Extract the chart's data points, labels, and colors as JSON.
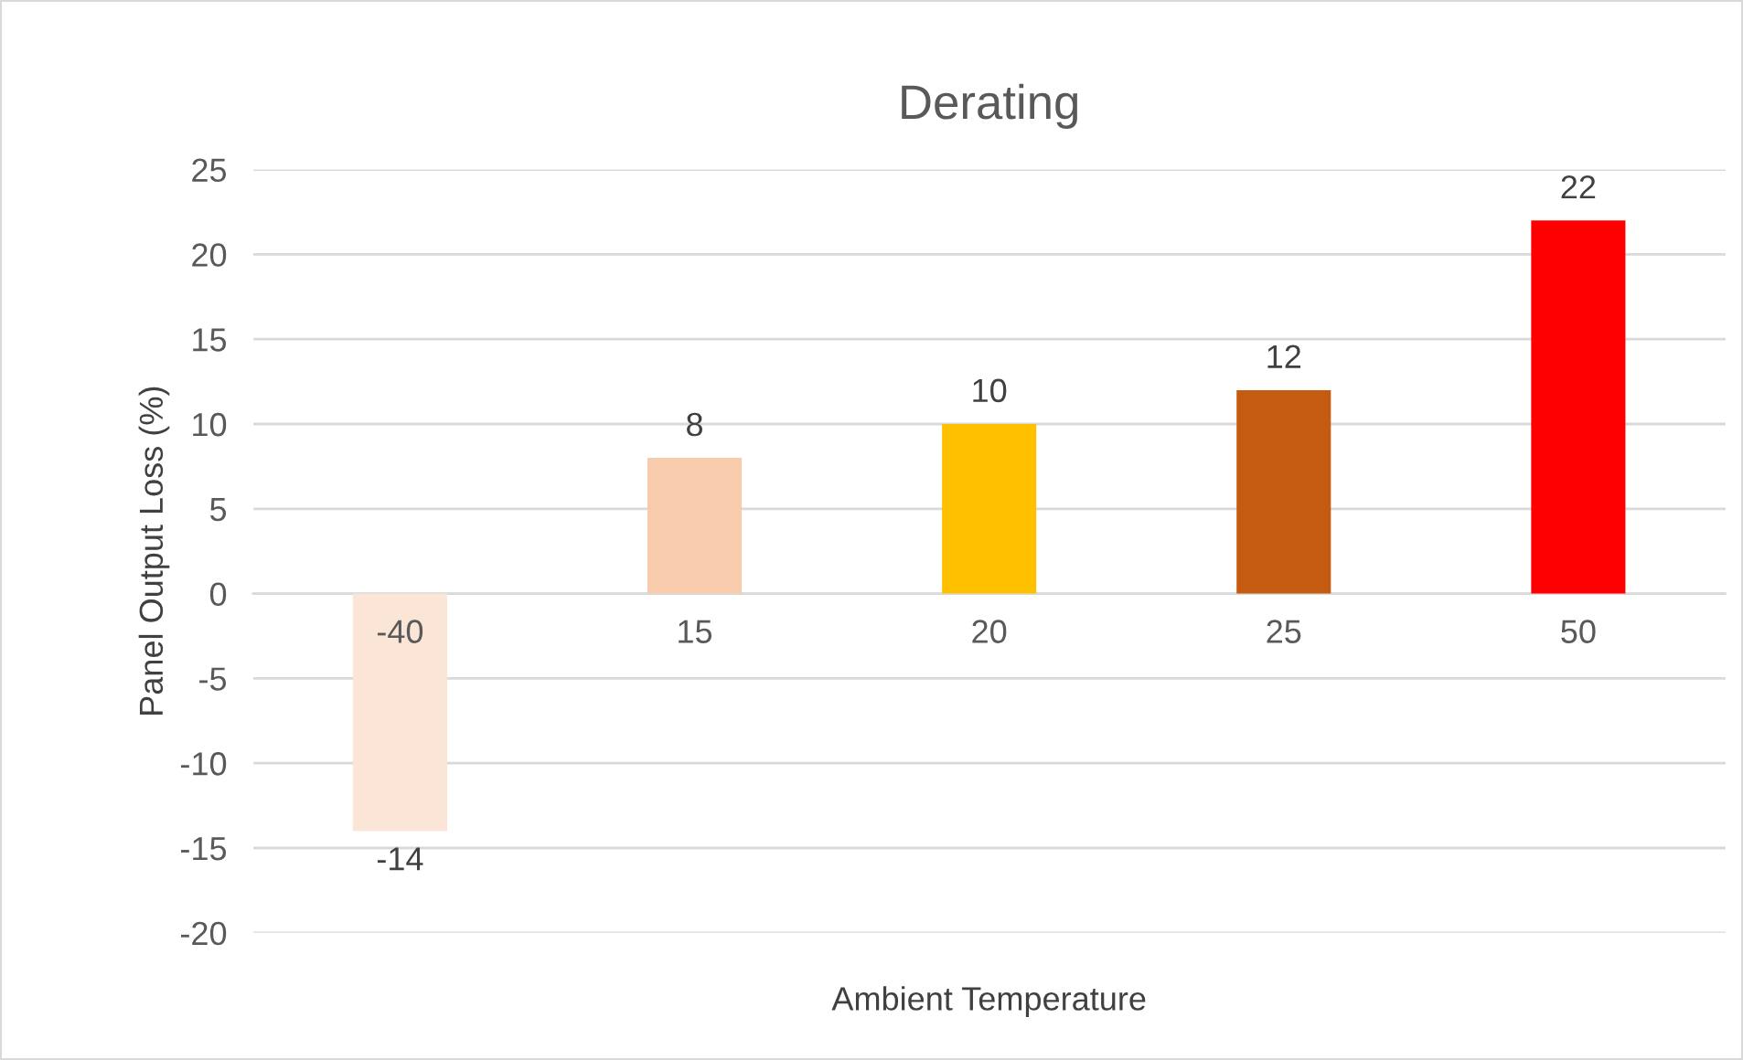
{
  "chart_data": {
    "type": "bar",
    "title": "Derating",
    "xlabel": "Ambient Temperature",
    "ylabel": "Panel Output Loss (%)",
    "categories": [
      "-40",
      "15",
      "20",
      "25",
      "50"
    ],
    "values": [
      -14,
      8,
      10,
      12,
      22
    ],
    "colors": [
      "#fbe5d6",
      "#f8cbad",
      "#ffc000",
      "#c55a11",
      "#ff0000"
    ],
    "ylim": [
      -20,
      25
    ],
    "yticks": [
      -20,
      -15,
      -10,
      -5,
      0,
      5,
      10,
      15,
      20,
      25
    ],
    "grid": "y",
    "data_labels": true
  }
}
